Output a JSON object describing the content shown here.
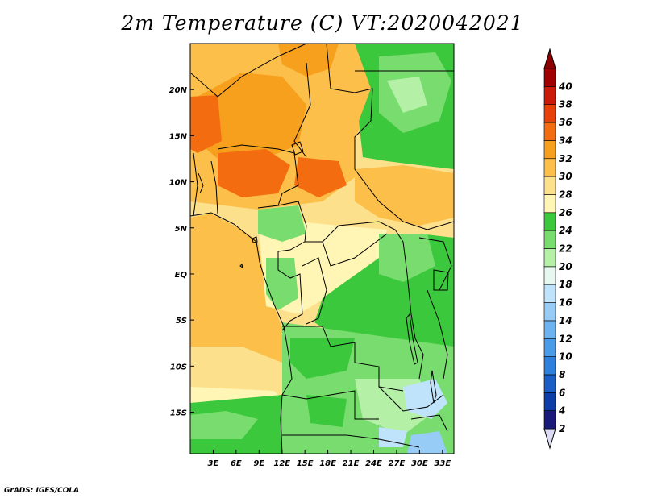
{
  "title": "2m Temperature (C) VT:2020042021",
  "credit": "GrADS: IGES/COLA",
  "map": {
    "lon_range": [
      0,
      34.5
    ],
    "lat_range": [
      -19.5,
      25
    ],
    "x_ticks": [
      {
        "value": 3,
        "label": "3E"
      },
      {
        "value": 6,
        "label": "6E"
      },
      {
        "value": 9,
        "label": "9E"
      },
      {
        "value": 12,
        "label": "12E"
      },
      {
        "value": 15,
        "label": "15E"
      },
      {
        "value": 18,
        "label": "18E"
      },
      {
        "value": 21,
        "label": "21E"
      },
      {
        "value": 24,
        "label": "24E"
      },
      {
        "value": 27,
        "label": "27E"
      },
      {
        "value": 30,
        "label": "30E"
      },
      {
        "value": 33,
        "label": "33E"
      }
    ],
    "y_ticks": [
      {
        "value": 20,
        "label": "20N"
      },
      {
        "value": 15,
        "label": "15N"
      },
      {
        "value": 10,
        "label": "10N"
      },
      {
        "value": 5,
        "label": "5N"
      },
      {
        "value": 0,
        "label": "EQ"
      },
      {
        "value": -5,
        "label": "5S"
      },
      {
        "value": -10,
        "label": "10S"
      },
      {
        "value": -15,
        "label": "15S"
      }
    ]
  },
  "colorbar": {
    "levels": [
      {
        "label": "2",
        "color": "#1a1a7a"
      },
      {
        "label": "4",
        "color": "#0d3ea8"
      },
      {
        "label": "6",
        "color": "#1c5ec4"
      },
      {
        "label": "8",
        "color": "#2f7fdc"
      },
      {
        "label": "10",
        "color": "#4a9be8"
      },
      {
        "label": "12",
        "color": "#6db3f0"
      },
      {
        "label": "14",
        "color": "#96ccf5"
      },
      {
        "label": "16",
        "color": "#bfe3fa"
      },
      {
        "label": "18",
        "color": "#e6f8f0"
      },
      {
        "label": "20",
        "color": "#b4f0a6"
      },
      {
        "label": "22",
        "color": "#78dc6e"
      },
      {
        "label": "24",
        "color": "#3cc83c"
      },
      {
        "label": "26",
        "color": "#fff5b4"
      },
      {
        "label": "28",
        "color": "#fde08c"
      },
      {
        "label": "30",
        "color": "#fbbf4a"
      },
      {
        "label": "32",
        "color": "#f7a01e"
      },
      {
        "label": "34",
        "color": "#f36d10"
      },
      {
        "label": "36",
        "color": "#e8400a"
      },
      {
        "label": "38",
        "color": "#cc1a0a"
      },
      {
        "label": "40",
        "color": "#a00000"
      }
    ],
    "under_color": "#dcdcf5",
    "over_color": "#8c0000"
  }
}
